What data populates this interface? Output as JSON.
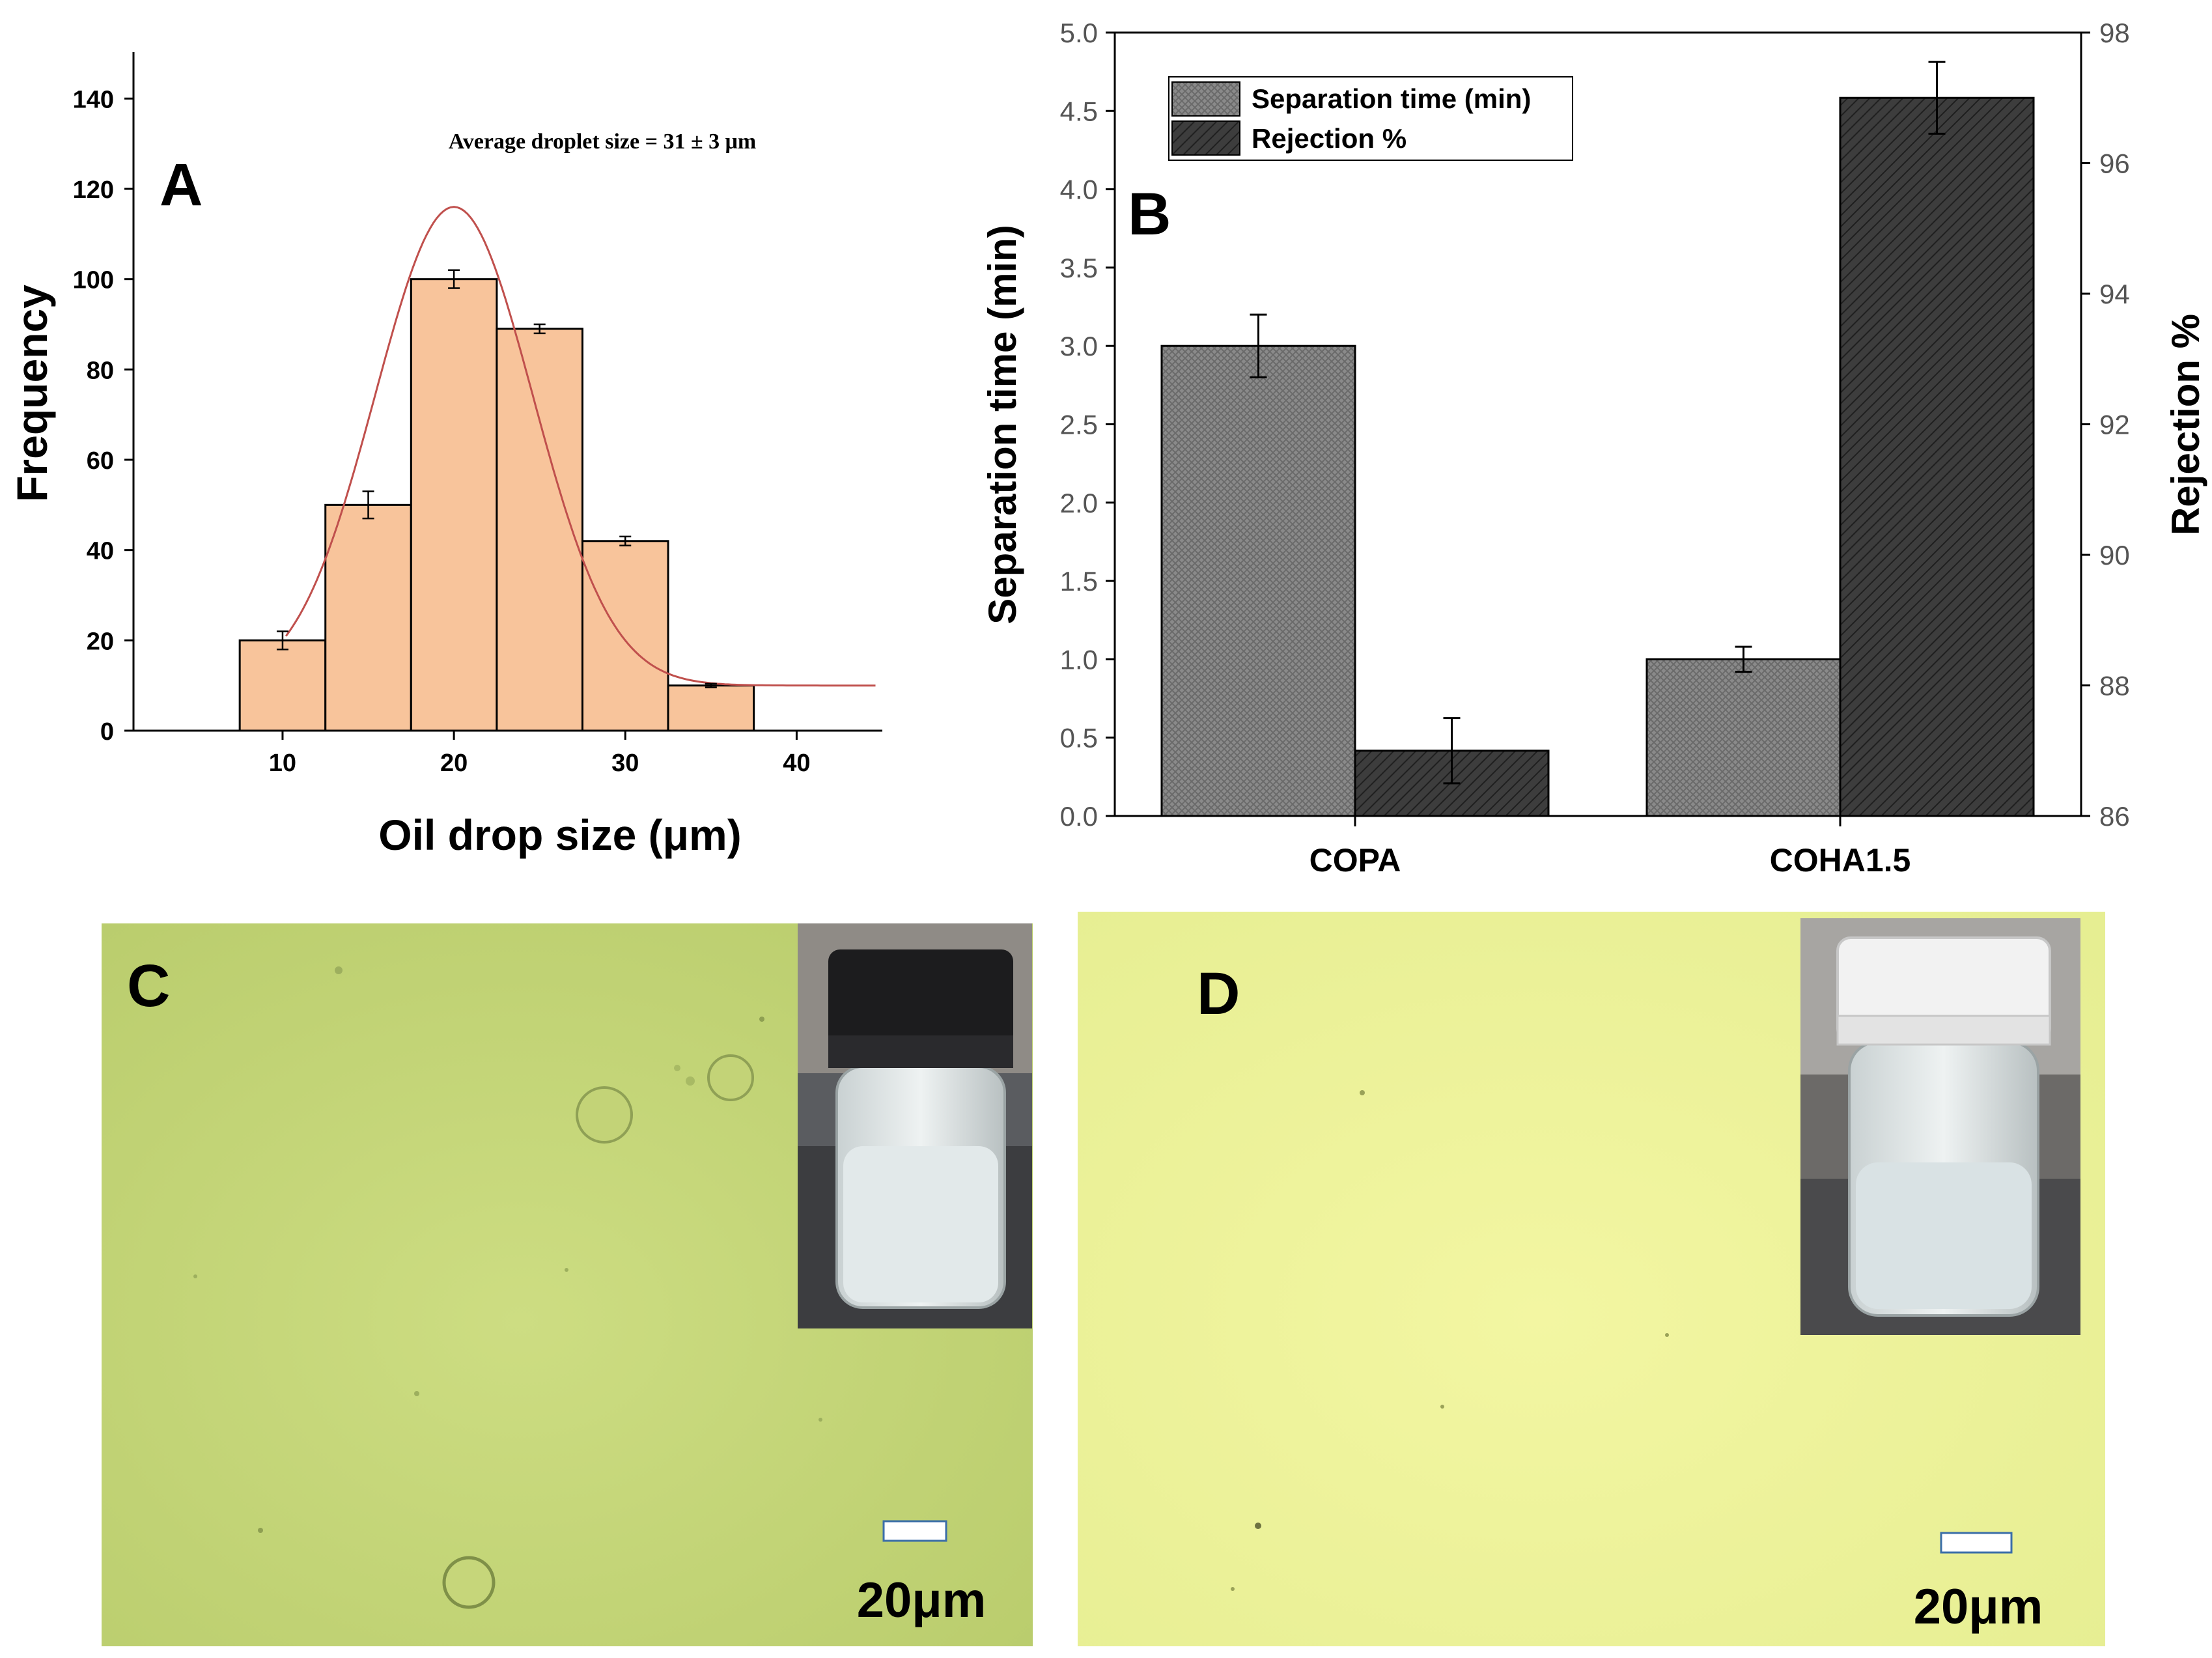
{
  "chart_data": [
    {
      "panel": "A",
      "type": "bar",
      "subtype": "histogram",
      "annotation": "Average droplet size = 31 ± 3 μm",
      "xlabel": "Oil drop size (μm)",
      "ylabel": "Frequency",
      "xlim": [
        0,
        45
      ],
      "ylim": [
        0,
        150
      ],
      "xticks": [
        "10",
        "20",
        "30",
        "40"
      ],
      "yticks": [
        "0",
        "20",
        "40",
        "60",
        "80",
        "100",
        "120",
        "140"
      ],
      "bins": [
        {
          "center": 10,
          "value": 20,
          "error": 2
        },
        {
          "center": 15,
          "value": 50,
          "error": 3
        },
        {
          "center": 20,
          "value": 100,
          "error": 2
        },
        {
          "center": 25,
          "value": 89,
          "error": 1
        },
        {
          "center": 30,
          "value": 42,
          "error": 1
        },
        {
          "center": 35,
          "value": 10,
          "error": 0.4
        }
      ],
      "fit": {
        "type": "gaussian",
        "peak_x": 20,
        "peak_y": 116,
        "sigma": 4.6,
        "baseline": 10
      },
      "bar_color": "#f8c49b",
      "fit_color": "#c0504d"
    },
    {
      "panel": "B",
      "type": "bar",
      "categories": [
        "COPA",
        "COHA1.5"
      ],
      "series": [
        {
          "name": "Separation time (min)",
          "axis": "left",
          "values": [
            3.0,
            1.0
          ],
          "errors": [
            0.2,
            0.08
          ],
          "color": "#8a8a8a"
        },
        {
          "name": "Rejection %",
          "axis": "right",
          "values": [
            87.0,
            97.0
          ],
          "errors": [
            0.5,
            0.55
          ],
          "color": "#3d3d3d"
        }
      ],
      "ylabel": "Separation time (min)",
      "y2label": "Rejection %",
      "ylim": [
        0,
        5
      ],
      "y2lim": [
        86,
        98
      ],
      "yticks": [
        "0.0",
        "0.5",
        "1.0",
        "1.5",
        "2.0",
        "2.5",
        "3.0",
        "3.5",
        "4.0",
        "4.5",
        "5.0"
      ],
      "y2ticks": [
        "86",
        "88",
        "90",
        "92",
        "94",
        "96",
        "98"
      ],
      "legend": "top-left"
    }
  ],
  "panels": {
    "a_label": "A",
    "b_label": "B",
    "c_label": "C",
    "d_label": "D",
    "c_scale": "20μm",
    "d_scale": "20μm",
    "c_background": "#c7d87c",
    "d_background": "#eef39c"
  }
}
